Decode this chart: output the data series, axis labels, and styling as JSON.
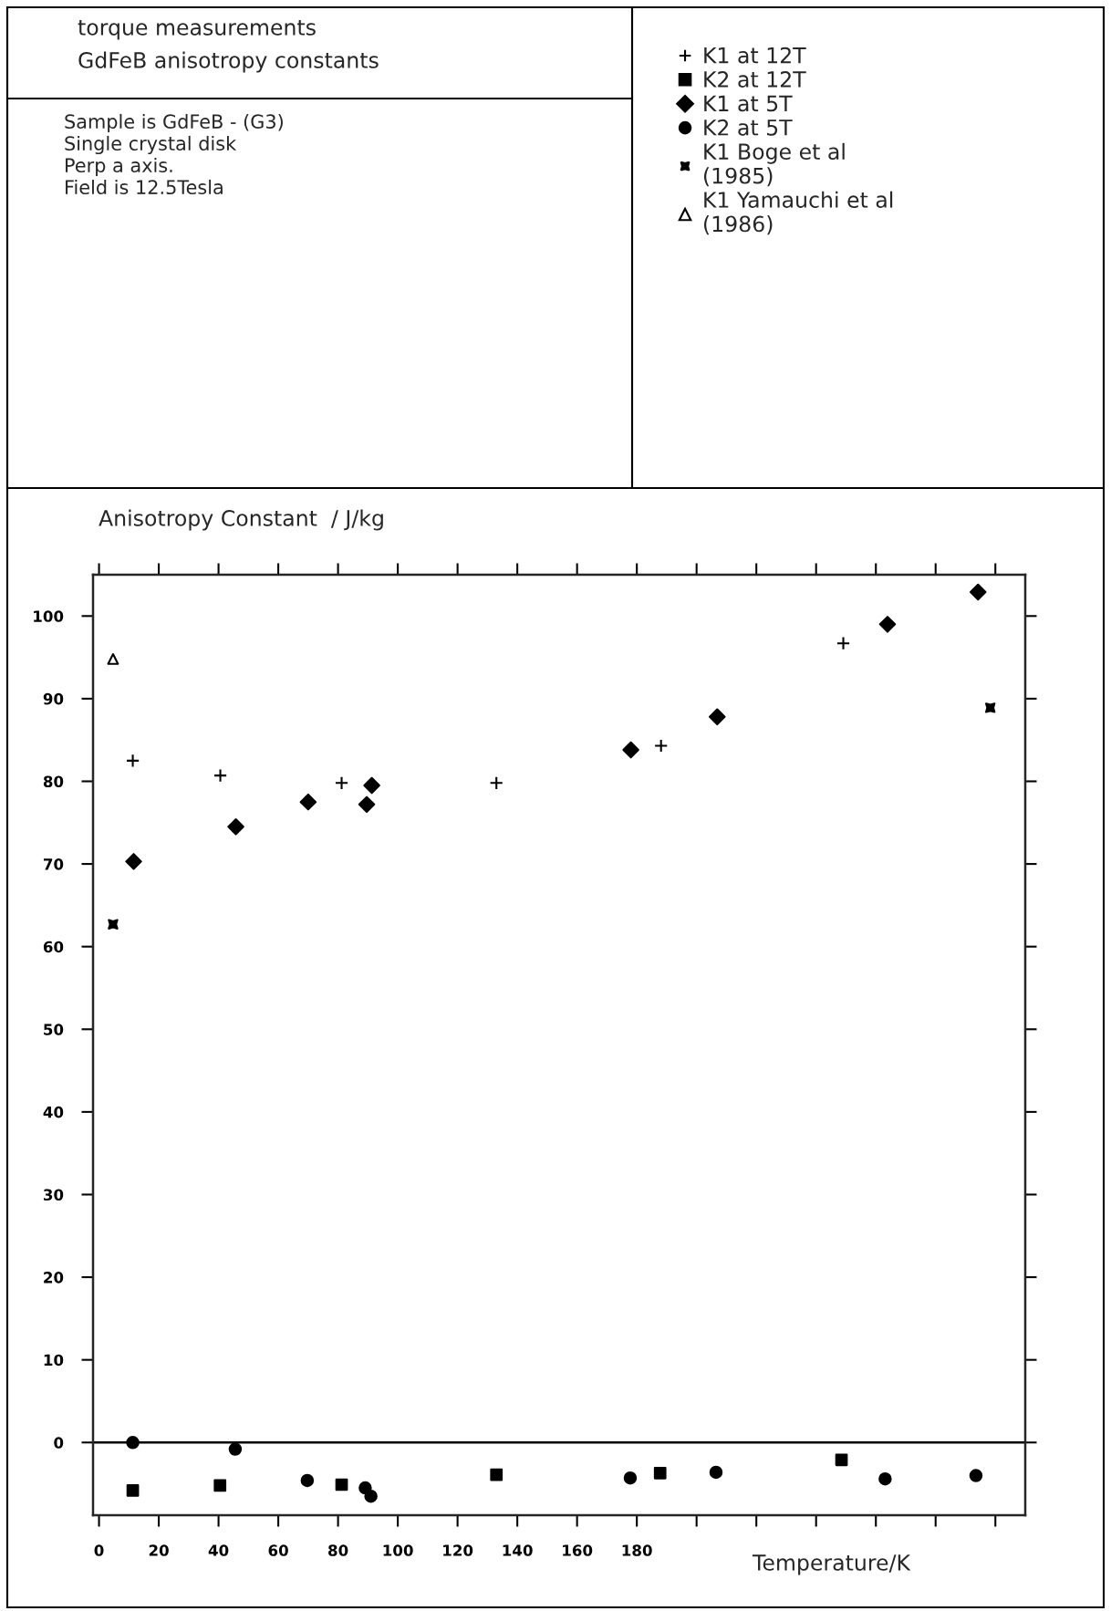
{
  "chart_data": {
    "type": "scatter",
    "title": "torque measurements",
    "subtitle": "GdFeB anisotropy constants",
    "annotations": [
      "Sample is GdFeB - (G3)",
      "Single crystal disk",
      "Perp a axis.",
      "Field is 12.5Tesla"
    ],
    "xlabel": "Temperature/K",
    "ylabel": "Anisotropy Constant  / J/kg",
    "xlim": [
      -2,
      310
    ],
    "ylim": [
      -8.8,
      105
    ],
    "xticks": [
      0,
      20,
      40,
      60,
      80,
      100,
      120,
      140,
      160,
      180,
      {
        "value": 200,
        "label": null
      },
      {
        "value": 220,
        "label": null
      },
      {
        "value": 240,
        "label": null
      },
      {
        "value": 260,
        "label": null
      },
      {
        "value": 280,
        "label": null
      },
      {
        "value": 300,
        "label": null
      }
    ],
    "yticks": [
      0,
      10,
      20,
      30,
      40,
      50,
      60,
      70,
      80,
      90,
      100
    ],
    "ref_lines": [
      {
        "axis": "y",
        "value": 0,
        "label": null
      }
    ],
    "grid": false,
    "legend": "top right",
    "series": [
      {
        "name": "K1 at 12T",
        "color": "#000000",
        "marker": "cross",
        "x": [
          11.3,
          40.6,
          81.2,
          133.0,
          188.1,
          249.1
        ],
        "values": [
          82.5,
          80.7,
          79.8,
          79.8,
          84.3,
          96.7
        ]
      },
      {
        "name": "K2 at 12T",
        "color": "#000000",
        "marker": "square",
        "x": [
          11.3,
          40.5,
          81.2,
          133.0,
          187.8,
          248.5
        ],
        "values": [
          -5.8,
          -5.2,
          -5.1,
          -3.9,
          -3.7,
          -2.1
        ]
      },
      {
        "name": "K1 at 5T",
        "color": "#000000",
        "marker": "diamond",
        "x": [
          11.6,
          45.8,
          70.0,
          89.6,
          91.3,
          178.0,
          206.9,
          263.9,
          294.2
        ],
        "values": [
          70.3,
          74.5,
          77.5,
          77.2,
          79.5,
          83.8,
          87.8,
          99.0,
          102.9
        ]
      },
      {
        "name": "K2 at 5T",
        "color": "#000000",
        "marker": "circle",
        "x": [
          11.3,
          45.6,
          69.7,
          89.1,
          91.0,
          177.8,
          206.5,
          263.1,
          293.5
        ],
        "values": [
          0.0,
          -0.8,
          -4.6,
          -5.5,
          -6.5,
          -4.3,
          -3.6,
          -4.4,
          -4.0
        ]
      },
      {
        "name": "K1 Boge et al\n(1985)",
        "color": "#000000",
        "marker": "star",
        "x": [
          4.7,
          298.3
        ],
        "values": [
          62.7,
          88.9
        ]
      },
      {
        "name": "K1 Yamauchi et al\n(1986)",
        "color": "#000000",
        "marker": "triangle",
        "x": [
          4.7
        ],
        "values": [
          94.8
        ]
      }
    ]
  }
}
